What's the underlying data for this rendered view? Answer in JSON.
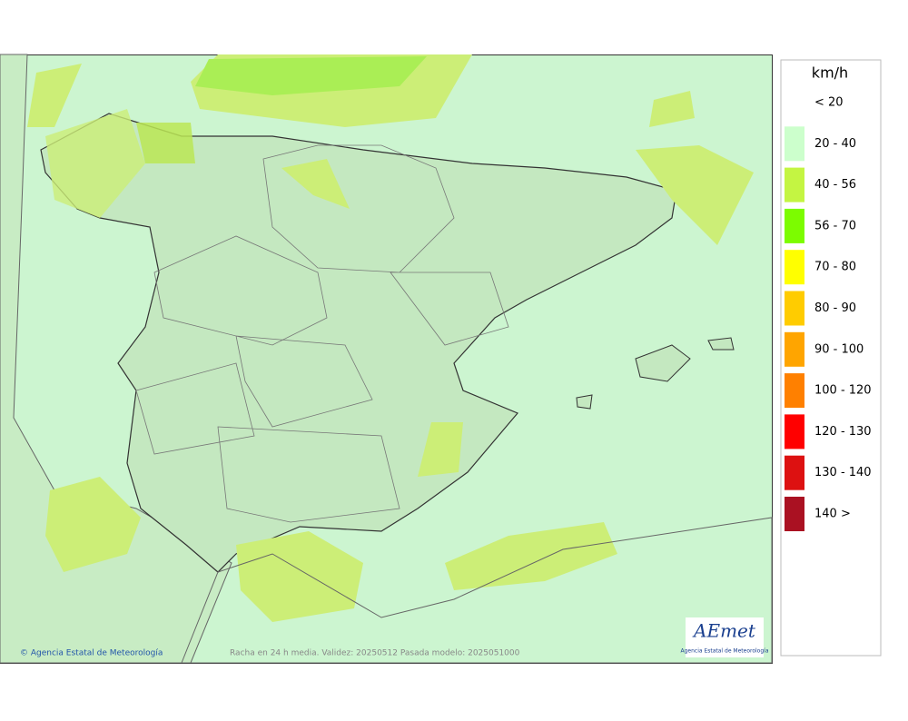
{
  "legend": {
    "unit": "km/h",
    "items": [
      {
        "label": "< 20"
      },
      {
        "label": "20 - 40",
        "color": "#ccffcc"
      },
      {
        "label": "40 - 56",
        "color": "#c4f542"
      },
      {
        "label": "56 - 70",
        "color": "#7cfc00"
      },
      {
        "label": "70 - 80",
        "color": "#ffff00"
      },
      {
        "label": "80 - 90",
        "color": "#ffcc00"
      },
      {
        "label": "90 - 100",
        "color": "#ffa500"
      },
      {
        "label": "100 - 120",
        "color": "#ff8000"
      },
      {
        "label": "120 - 130",
        "color": "#ff0000"
      },
      {
        "label": "130 - 140",
        "color": "#dd1111"
      },
      {
        "label": "140 >",
        "color": "#aa1122"
      }
    ]
  },
  "footer": {
    "credit": "© Agencia Estatal de Meteorología",
    "caption": "Racha en 24 h media. Validez: 20250512 Pasada modelo: 2025051000"
  },
  "logo": {
    "name": "AEmet",
    "subtitle": "Agencia Estatal de Meteorología"
  }
}
